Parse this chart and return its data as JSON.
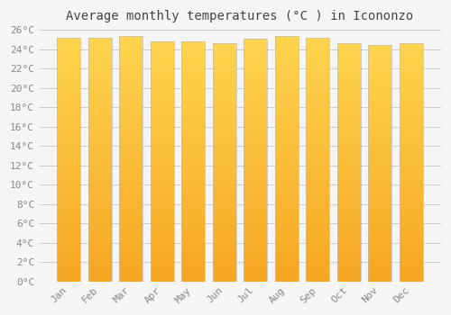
{
  "title": "Average monthly temperatures (°C ) in Icononzo",
  "months": [
    "Jan",
    "Feb",
    "Mar",
    "Apr",
    "May",
    "Jun",
    "Jul",
    "Aug",
    "Sep",
    "Oct",
    "Nov",
    "Dec"
  ],
  "values": [
    25.2,
    25.2,
    25.35,
    24.8,
    24.8,
    24.6,
    25.1,
    25.35,
    25.2,
    24.6,
    24.4,
    24.6
  ],
  "ylim": [
    0,
    26
  ],
  "ytick_step": 2,
  "bar_color_bottom": "#F5A623",
  "bar_color_top": "#FFD44E",
  "bar_edge_color": "#BBBBBB",
  "background_color": "#F5F5F5",
  "plot_bg_color": "#F5F5F5",
  "grid_color": "#CCCCCC",
  "title_fontsize": 10,
  "tick_fontsize": 8,
  "bar_width": 0.75,
  "title_color": "#444444",
  "tick_color": "#888888"
}
